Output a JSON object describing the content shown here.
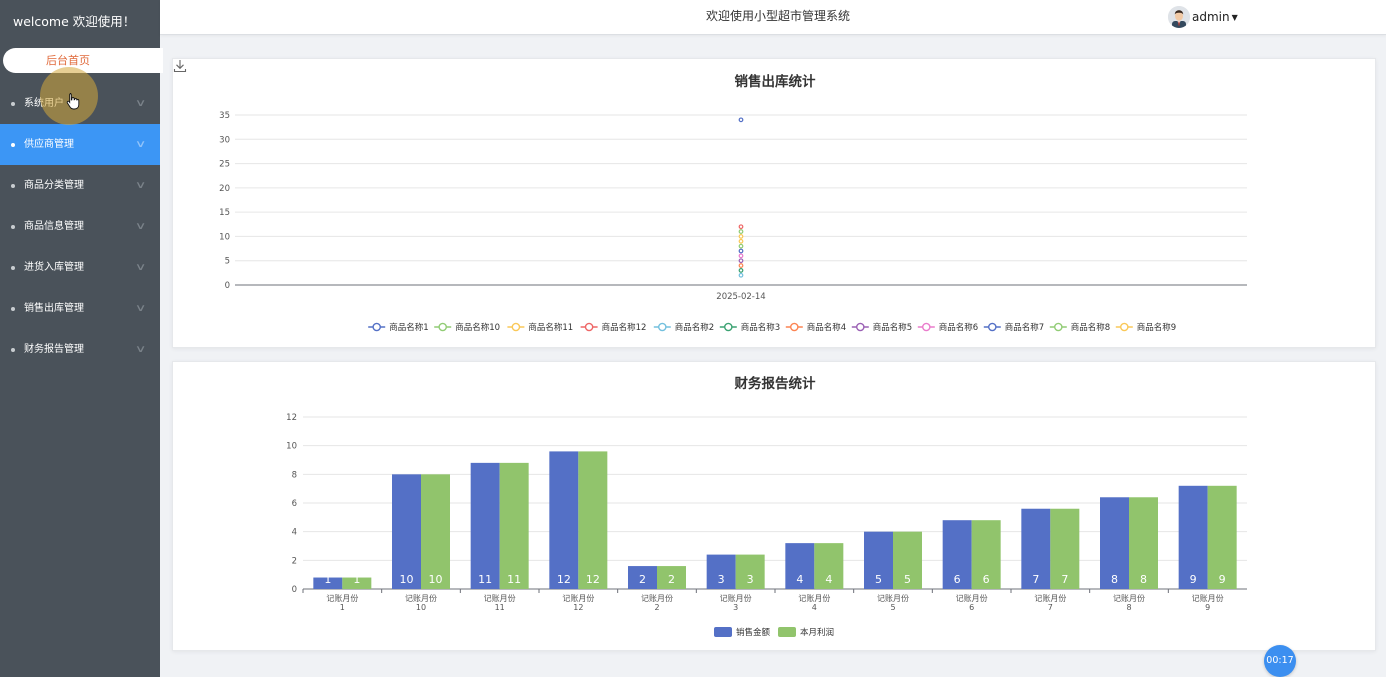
{
  "sidebar": {
    "welcome": "welcome 欢迎使用！",
    "home": "后台首页",
    "items": [
      {
        "label": "系统用户",
        "active": false
      },
      {
        "label": "供应商管理",
        "active": true
      },
      {
        "label": "商品分类管理",
        "active": false
      },
      {
        "label": "商品信息管理",
        "active": false
      },
      {
        "label": "进货入库管理",
        "active": false
      },
      {
        "label": "销售出库管理",
        "active": false
      },
      {
        "label": "财务报告管理",
        "active": false
      }
    ]
  },
  "header": {
    "title": "欢迎使用小型超市管理系统",
    "username": "admin"
  },
  "timer": "00:17",
  "chart_data": [
    {
      "type": "scatter",
      "title": "销售出库统计",
      "x": [
        "2025-02-14"
      ],
      "ylim": [
        0,
        35
      ],
      "yticks": [
        0,
        5,
        10,
        15,
        20,
        25,
        30,
        35
      ],
      "legend_position": "bottom",
      "series": [
        {
          "name": "商品名称1",
          "color": "#5470c6",
          "values": [
            34
          ]
        },
        {
          "name": "商品名称10",
          "color": "#91cc75",
          "values": [
            11
          ]
        },
        {
          "name": "商品名称11",
          "color": "#fac858",
          "values": [
            10
          ]
        },
        {
          "name": "商品名称12",
          "color": "#ee6666",
          "values": [
            12
          ]
        },
        {
          "name": "商品名称2",
          "color": "#73c0de",
          "values": [
            2
          ]
        },
        {
          "name": "商品名称3",
          "color": "#3ba272",
          "values": [
            3
          ]
        },
        {
          "name": "商品名称4",
          "color": "#fc8452",
          "values": [
            4
          ]
        },
        {
          "name": "商品名称5",
          "color": "#9a60b4",
          "values": [
            5
          ]
        },
        {
          "name": "商品名称6",
          "color": "#ea7ccc",
          "values": [
            6
          ]
        },
        {
          "name": "商品名称7",
          "color": "#5470c6",
          "values": [
            7
          ]
        },
        {
          "name": "商品名称8",
          "color": "#91cc75",
          "values": [
            8
          ]
        },
        {
          "name": "商品名称9",
          "color": "#fac858",
          "values": [
            9
          ]
        }
      ]
    },
    {
      "type": "bar",
      "title": "财务报告统计",
      "categories": [
        "记账月份\n1",
        "记账月份\n10",
        "记账月份\n11",
        "记账月份\n12",
        "记账月份\n2",
        "记账月份\n3",
        "记账月份\n4",
        "记账月份\n5",
        "记账月份\n6",
        "记账月份\n7",
        "记账月份\n8",
        "记账月份\n9"
      ],
      "labels": [
        "1",
        "10",
        "11",
        "12",
        "2",
        "3",
        "4",
        "5",
        "6",
        "7",
        "8",
        "9"
      ],
      "ylim": [
        0,
        12
      ],
      "yticks": [
        0,
        2,
        4,
        6,
        8,
        10,
        12
      ],
      "legend_position": "bottom",
      "series": [
        {
          "name": "销售金额",
          "color": "#5470c6",
          "values": [
            0.8,
            8,
            8.8,
            9.6,
            1.6,
            2.4,
            3.2,
            4,
            4.8,
            5.6,
            6.4,
            7.2
          ]
        },
        {
          "name": "本月利润",
          "color": "#91c46c",
          "values": [
            0.8,
            8,
            8.8,
            9.6,
            1.6,
            2.4,
            3.2,
            4,
            4.8,
            5.6,
            6.4,
            7.2
          ]
        }
      ]
    }
  ]
}
